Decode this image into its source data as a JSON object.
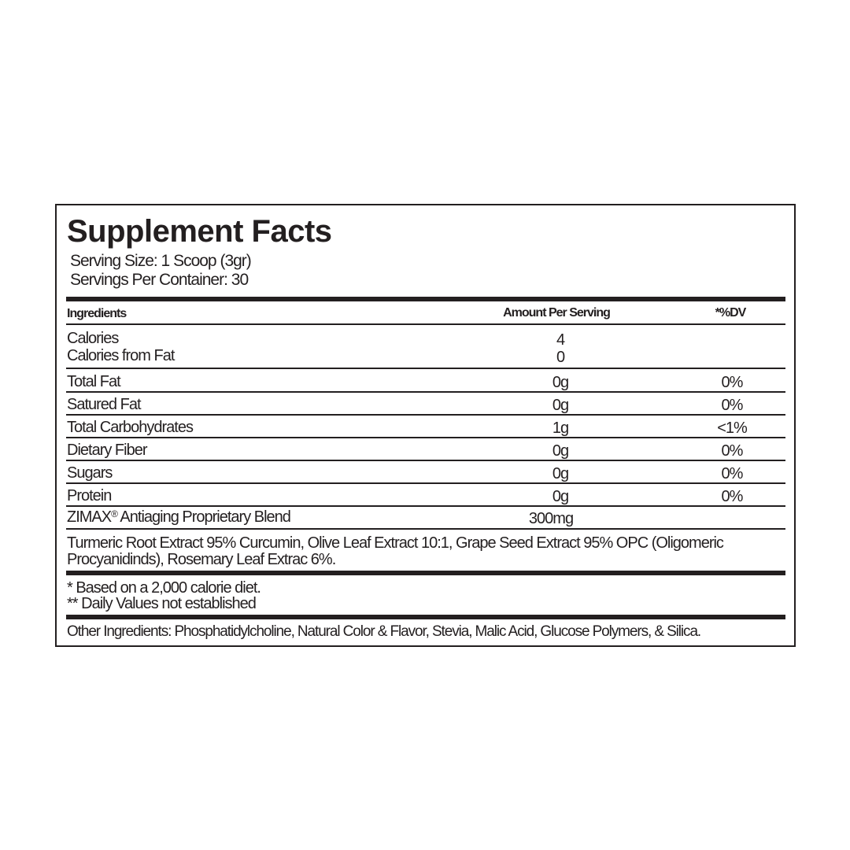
{
  "title": "Supplement Facts",
  "serving_size": "Serving Size: 1 Scoop (3gr)",
  "servings_per_container": "Servings Per Container: 30",
  "header": {
    "ingredients": "Ingredients",
    "amount": "Amount Per Serving",
    "dv": "*%DV"
  },
  "calories": {
    "label": "Calories",
    "value": "4",
    "fat_label": "Calories from Fat",
    "fat_value": "0"
  },
  "rows": [
    {
      "label": "Total Fat",
      "amount": "0g",
      "dv": "0%"
    },
    {
      "label": "Satured Fat",
      "amount": "0g",
      "dv": "0%"
    },
    {
      "label": "Total Carbohydrates",
      "amount": "1g",
      "dv": "<1%"
    },
    {
      "label": "Dietary Fiber",
      "amount": "0g",
      "dv": "0%"
    },
    {
      "label": "Sugars",
      "amount": "0g",
      "dv": "0%"
    },
    {
      "label": "Protein",
      "amount": "0g",
      "dv": "0%"
    }
  ],
  "blend": {
    "brand": "ZIMAX",
    "mark": "®",
    "label": " Antiaging Proprietary Blend",
    "amount": "300mg",
    "ingredients_line1": "Turmeric Root Extract 95% Curcumin, Olive Leaf Extract 10:1, Grape Seed Extract 95% OPC (Oligomeric",
    "ingredients_line2": "Procyanidinds), Rosemary Leaf Extrac 6%."
  },
  "footnotes": [
    "* Based on a 2,000 calorie diet.",
    "** Daily Values not established"
  ],
  "other_ingredients": "Other Ingredients: Phosphatidylcholine, Natural Color & Flavor, Stevia, Malic Acid, Glucose Polymers, & Silica."
}
